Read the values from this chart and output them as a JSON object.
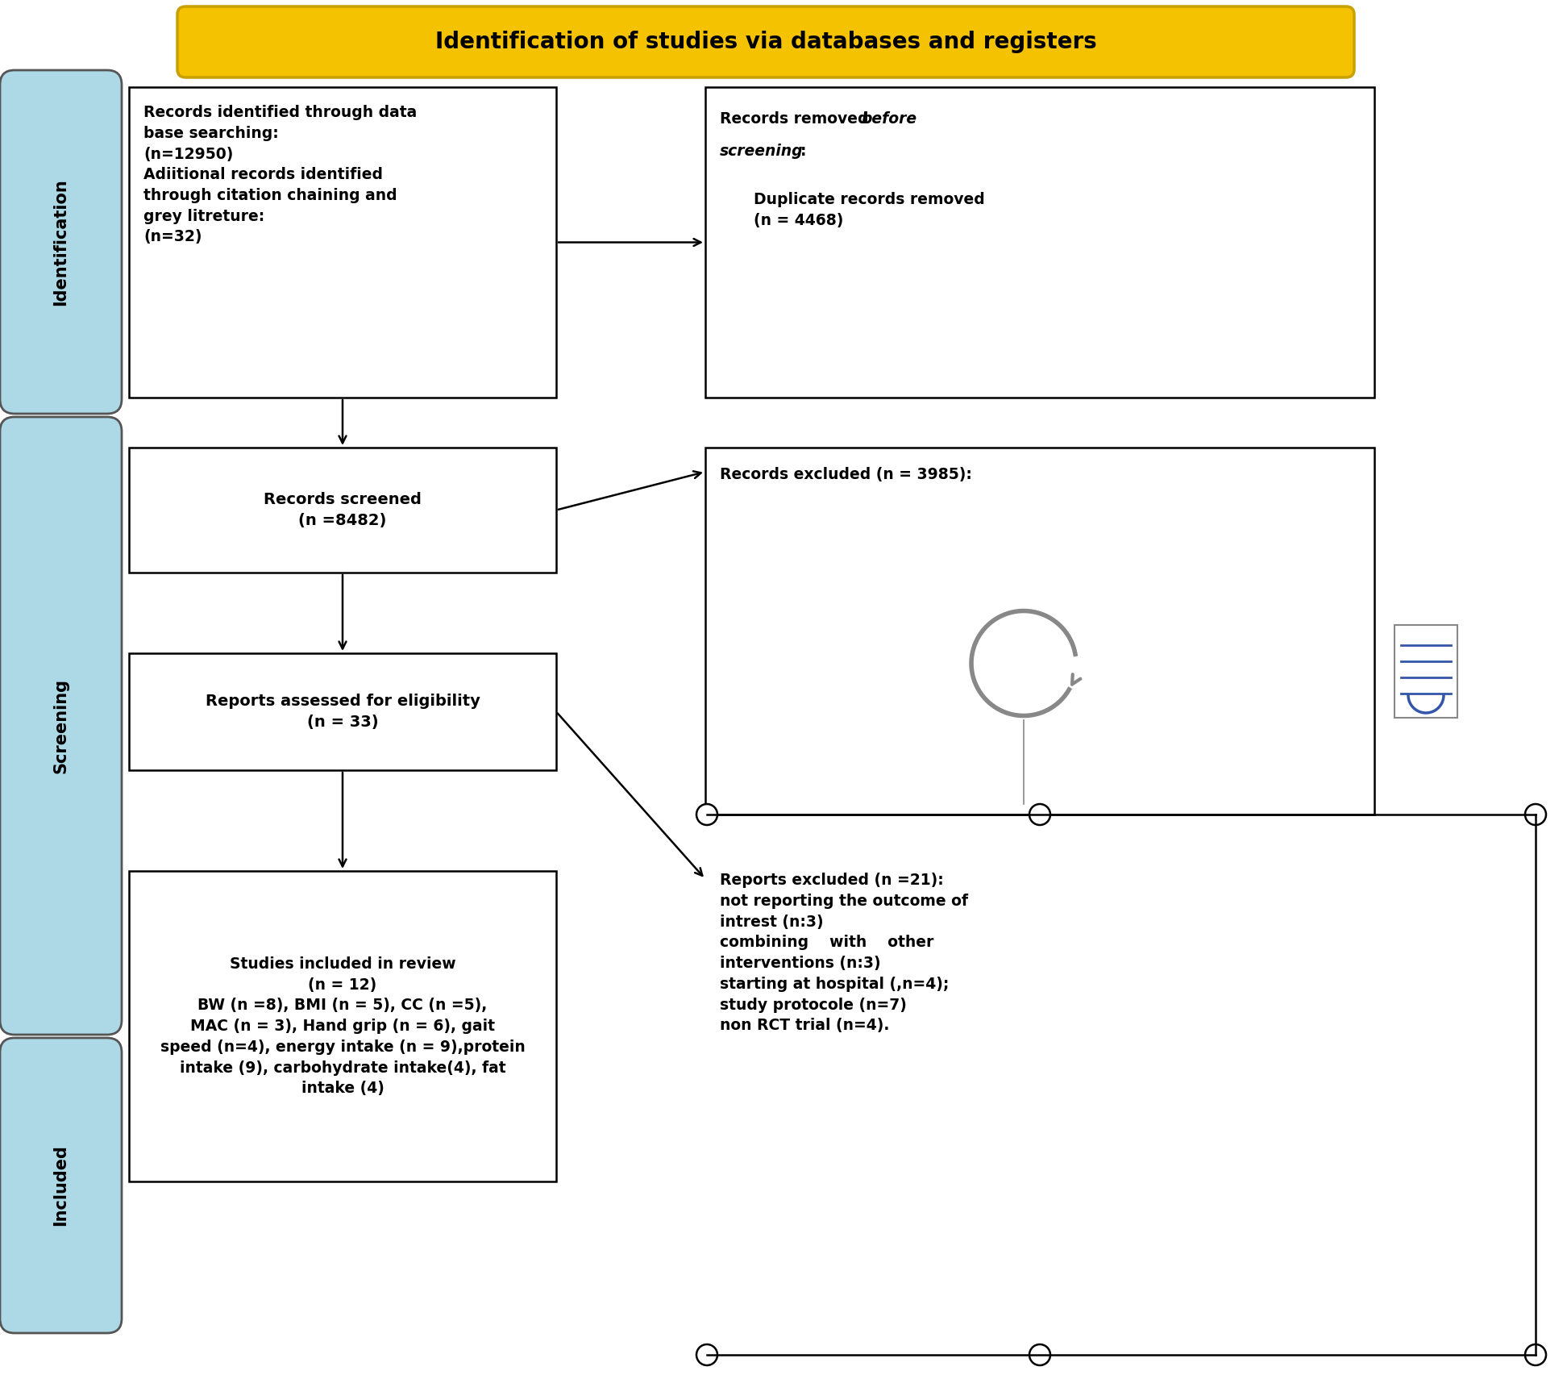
{
  "title": "Identification of studies via databases and registers",
  "title_bg": "#F5C200",
  "title_border": "#C8A000",
  "sidebar_color": "#ADD8E6",
  "sidebar_border": "#555555",
  "box_edge": "#000000",
  "bg_color": "#FFFFFF",
  "box1_text": "Records identified through data\nbase searching:\n(n=12950)\nAdiitional records identified\nthrough citation chaining and\ngrey litreture:\n(n=32)",
  "box2_text": "Records screened\n(n =8482)",
  "box3_text": "Reports assessed for eligibility\n(n = 33)",
  "box4_text": "Studies included in review\n(n = 12)\nBW (n =8), BMI (n = 5), CC (n =5),\nMAC (n = 3), Hand grip (n = 6), gait\nspeed (n=4), energy intake (n = 9),protein\nintake (9), carbohydrate intake(4), fat\nintake (4)",
  "box6_text": "Records excluded (n = 3985):",
  "box7_text": "Reports excluded (n =21):\nnot reporting the outcome of\nintrest (n:3)\ncombining    with    other\ninterventions (n:3)\nstarting at hospital (,n=4);\nstudy protocole (n=7)\nnon RCT trial (n=4)."
}
